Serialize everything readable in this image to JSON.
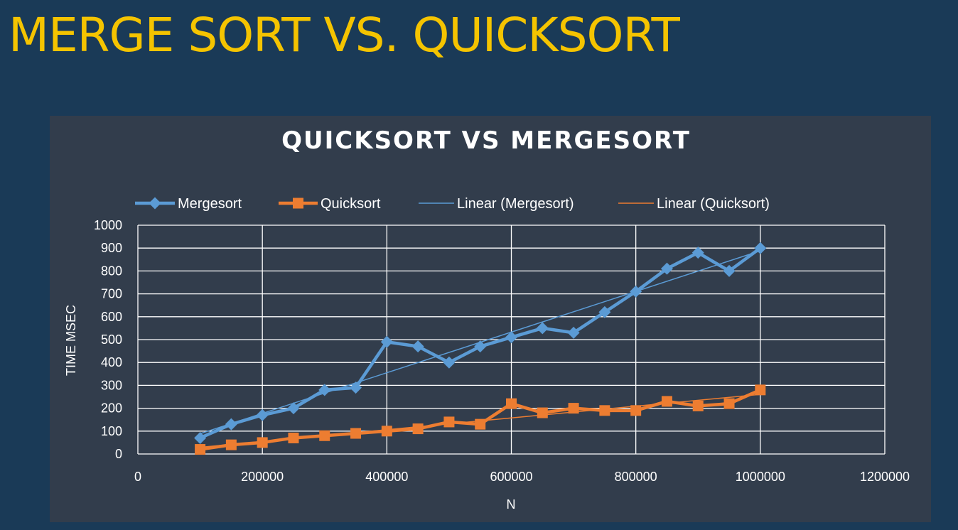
{
  "slide": {
    "title": "MERGE SORT VS. QUICKSORT"
  },
  "colors": {
    "background": "#1a3a57",
    "panel": "#323d4c",
    "title": "#f5c400",
    "mergesort": "#5b9bd5",
    "quicksort": "#ed7d31",
    "grid": "#ffffff"
  },
  "chart_data": {
    "type": "line",
    "title": "QUICKSORT VS MERGESORT",
    "xlabel": "N",
    "ylabel": "TIME MSEC",
    "xlim": [
      0,
      1200000
    ],
    "ylim": [
      0,
      1000
    ],
    "x_ticks": [
      0,
      200000,
      400000,
      600000,
      800000,
      1000000,
      1200000
    ],
    "y_ticks": [
      0,
      100,
      200,
      300,
      400,
      500,
      600,
      700,
      800,
      900,
      1000
    ],
    "grid": true,
    "legend_position": "top",
    "x": [
      100000,
      150000,
      200000,
      250000,
      300000,
      350000,
      400000,
      450000,
      500000,
      550000,
      600000,
      650000,
      700000,
      750000,
      800000,
      850000,
      900000,
      950000,
      1000000
    ],
    "series": [
      {
        "name": "Mergesort",
        "marker": "diamond",
        "color": "#5b9bd5",
        "values": [
          70,
          130,
          170,
          200,
          280,
          290,
          490,
          470,
          400,
          470,
          510,
          550,
          530,
          620,
          710,
          810,
          880,
          800,
          900
        ]
      },
      {
        "name": "Quicksort",
        "marker": "square",
        "color": "#ed7d31",
        "values": [
          20,
          40,
          50,
          70,
          80,
          90,
          100,
          110,
          140,
          130,
          220,
          180,
          200,
          190,
          190,
          230,
          210,
          220,
          280
        ]
      }
    ],
    "trendlines": [
      {
        "name": "Linear (Mergesort)",
        "color": "#5b9bd5",
        "of": "Mergesort"
      },
      {
        "name": "Linear (Quicksort)",
        "color": "#ed7d31",
        "of": "Quicksort"
      }
    ]
  }
}
